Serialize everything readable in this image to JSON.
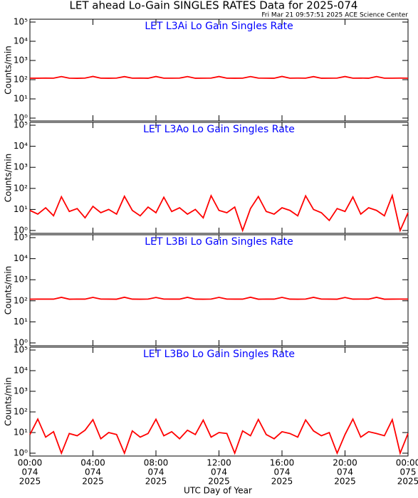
{
  "title": "LET ahead Lo-Gain SINGLES RATES Data for 2025-074",
  "subtitle": "Fri Mar 21 09:57:51 2025 ACE Science Center",
  "x_label": "UTC Day of Year",
  "chart_data": [
    {
      "type": "line",
      "title": "LET L3Ai Lo Gain Singles Rate",
      "y_label": "Counts/min",
      "log_y": true,
      "xlim": [
        0,
        24
      ],
      "xticks": [
        0,
        4,
        8,
        12,
        16,
        20,
        24
      ],
      "ylim": [
        1,
        100000
      ],
      "yticks": [
        {
          "value": 1,
          "label": "10⁰"
        },
        {
          "value": 10,
          "label": "10¹"
        },
        {
          "value": 100,
          "label": "10²"
        },
        {
          "value": 1000,
          "label": "10³"
        },
        {
          "value": 10000,
          "label": "10⁴"
        },
        {
          "value": 100000,
          "label": "10⁵"
        }
      ],
      "x": [
        0,
        0.5,
        1,
        1.5,
        2,
        2.5,
        3,
        3.5,
        4,
        4.5,
        5,
        5.5,
        6,
        6.5,
        7,
        7.5,
        8,
        8.5,
        9,
        9.5,
        10,
        10.5,
        11,
        11.5,
        12,
        12.5,
        13,
        13.5,
        14,
        14.5,
        15,
        15.5,
        16,
        16.5,
        17,
        17.5,
        18,
        18.5,
        19,
        19.5,
        20,
        20.5,
        21,
        21.5,
        22,
        22.5,
        23,
        23.5,
        24
      ],
      "series": [
        {
          "color": "#ff0000",
          "values": [
            120,
            119,
            121,
            120,
            145,
            120,
            118,
            121,
            147,
            120,
            119,
            121,
            144,
            120,
            121,
            119,
            146,
            120,
            120,
            121,
            145,
            119,
            120,
            121,
            146,
            120,
            119,
            120,
            145,
            121,
            120,
            119,
            147,
            120,
            121,
            120,
            144,
            119,
            120,
            121,
            146,
            120,
            121,
            119,
            145,
            120,
            120,
            121,
            120
          ]
        }
      ]
    },
    {
      "type": "line",
      "title": "LET L3Ao Lo Gain Singles Rate",
      "y_label": "Counts/min",
      "log_y": true,
      "xlim": [
        0,
        24
      ],
      "xticks": [
        0,
        4,
        8,
        12,
        16,
        20,
        24
      ],
      "ylim": [
        1,
        100000
      ],
      "yticks": [
        {
          "value": 1,
          "label": "10⁰"
        },
        {
          "value": 10,
          "label": "10¹"
        },
        {
          "value": 100,
          "label": "10²"
        },
        {
          "value": 1000,
          "label": "10³"
        },
        {
          "value": 10000,
          "label": "10⁴"
        },
        {
          "value": 100000,
          "label": "10⁵"
        }
      ],
      "x": [
        0,
        0.5,
        1,
        1.5,
        2,
        2.5,
        3,
        3.5,
        4,
        4.5,
        5,
        5.5,
        6,
        6.5,
        7,
        7.5,
        8,
        8.5,
        9,
        9.5,
        10,
        10.5,
        11,
        11.5,
        12,
        12.5,
        13,
        13.5,
        14,
        14.5,
        15,
        15.5,
        16,
        16.5,
        17,
        17.5,
        18,
        18.5,
        19,
        19.5,
        20,
        20.5,
        21,
        21.5,
        22,
        22.5,
        23,
        23.5,
        24
      ],
      "series": [
        {
          "color": "#ff0000",
          "values": [
            9,
            6,
            12,
            5,
            40,
            8,
            11,
            4,
            14,
            7,
            10,
            6,
            42,
            9,
            5,
            13,
            7,
            38,
            8,
            12,
            6,
            10,
            4,
            45,
            9,
            7,
            13,
            1,
            11,
            41,
            8,
            6,
            12,
            9,
            5,
            44,
            10,
            7,
            3,
            11,
            8,
            39,
            6,
            12,
            9,
            5,
            46,
            1,
            7
          ]
        }
      ]
    },
    {
      "type": "line",
      "title": "LET L3Bi Lo Gain Singles Rate",
      "y_label": "Counts/min",
      "log_y": true,
      "xlim": [
        0,
        24
      ],
      "xticks": [
        0,
        4,
        8,
        12,
        16,
        20,
        24
      ],
      "ylim": [
        1,
        100000
      ],
      "yticks": [
        {
          "value": 1,
          "label": "10⁰"
        },
        {
          "value": 10,
          "label": "10¹"
        },
        {
          "value": 100,
          "label": "10²"
        },
        {
          "value": 1000,
          "label": "10³"
        },
        {
          "value": 10000,
          "label": "10⁴"
        },
        {
          "value": 100000,
          "label": "10⁵"
        }
      ],
      "x": [
        0,
        0.5,
        1,
        1.5,
        2,
        2.5,
        3,
        3.5,
        4,
        4.5,
        5,
        5.5,
        6,
        6.5,
        7,
        7.5,
        8,
        8.5,
        9,
        9.5,
        10,
        10.5,
        11,
        11.5,
        12,
        12.5,
        13,
        13.5,
        14,
        14.5,
        15,
        15.5,
        16,
        16.5,
        17,
        17.5,
        18,
        18.5,
        19,
        19.5,
        20,
        20.5,
        21,
        21.5,
        22,
        22.5,
        23,
        23.5,
        24
      ],
      "series": [
        {
          "color": "#ff0000",
          "values": [
            119,
            121,
            120,
            120,
            146,
            119,
            121,
            120,
            145,
            121,
            120,
            119,
            147,
            120,
            119,
            121,
            144,
            121,
            120,
            120,
            146,
            120,
            119,
            121,
            145,
            121,
            120,
            120,
            147,
            119,
            121,
            120,
            145,
            120,
            119,
            121,
            146,
            121,
            120,
            119,
            144,
            120,
            121,
            120,
            146,
            119,
            120,
            121,
            120
          ]
        }
      ]
    },
    {
      "type": "line",
      "title": "LET L3Bo Lo Gain Singles Rate",
      "y_label": "Counts/min",
      "log_y": true,
      "xlim": [
        0,
        24
      ],
      "xticks": [
        {
          "value": 0,
          "label": [
            "00:00",
            "074",
            "2025"
          ]
        },
        {
          "value": 4,
          "label": [
            "04:00",
            "074",
            "2025"
          ]
        },
        {
          "value": 8,
          "label": [
            "08:00",
            "074",
            "2025"
          ]
        },
        {
          "value": 12,
          "label": [
            "12:00",
            "074",
            "2025"
          ]
        },
        {
          "value": 16,
          "label": [
            "16:00",
            "074",
            "2025"
          ]
        },
        {
          "value": 20,
          "label": [
            "20:00",
            "074",
            "2025"
          ]
        },
        {
          "value": 24,
          "label": [
            "00:00",
            "075",
            "2025"
          ]
        }
      ],
      "ylim": [
        1,
        100000
      ],
      "yticks": [
        {
          "value": 1,
          "label": "10⁰"
        },
        {
          "value": 10,
          "label": "10¹"
        },
        {
          "value": 100,
          "label": "10²"
        },
        {
          "value": 1000,
          "label": "10³"
        },
        {
          "value": 10000,
          "label": "10⁴"
        },
        {
          "value": 100000,
          "label": "10⁵"
        }
      ],
      "x": [
        0,
        0.5,
        1,
        1.5,
        2,
        2.5,
        3,
        3.5,
        4,
        4.5,
        5,
        5.5,
        6,
        6.5,
        7,
        7.5,
        8,
        8.5,
        9,
        9.5,
        10,
        10.5,
        11,
        11.5,
        12,
        12.5,
        13,
        13.5,
        14,
        14.5,
        15,
        15.5,
        16,
        16.5,
        17,
        17.5,
        18,
        18.5,
        19,
        19.5,
        20,
        20.5,
        21,
        21.5,
        22,
        22.5,
        23,
        23.5,
        24
      ],
      "series": [
        {
          "color": "#ff0000",
          "values": [
            8,
            45,
            6,
            11,
            1,
            9,
            7,
            13,
            42,
            5,
            10,
            8,
            1,
            12,
            6,
            9,
            44,
            7,
            11,
            5,
            13,
            8,
            40,
            6,
            10,
            9,
            1,
            12,
            7,
            43,
            8,
            5,
            11,
            9,
            6,
            41,
            12,
            7,
            10,
            1,
            8,
            45,
            6,
            11,
            9,
            7,
            42,
            1,
            9
          ]
        }
      ]
    }
  ]
}
